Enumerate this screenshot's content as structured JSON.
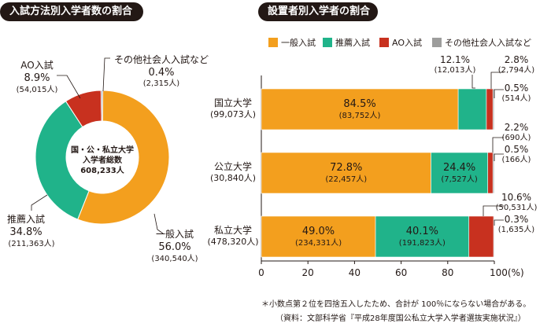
{
  "titles": {
    "left": "入試方法別入学者数の割合",
    "right": "設置者別入学者の割合"
  },
  "colors": {
    "general": "#F39F1E",
    "recommendation": "#20B38A",
    "ao": "#C8311F",
    "other": "#9D9D9C"
  },
  "chart_data": [
    {
      "type": "pie",
      "title": "入試方法別入学者数の割合",
      "center_label": [
        "国・公・私立大学",
        "入学者総数",
        "608,233人"
      ],
      "slices": [
        {
          "name": "一般入試",
          "percent": "56.0%",
          "count": "(340,540人)",
          "value": 56.0
        },
        {
          "name": "推薦入試",
          "percent": "34.8%",
          "count": "(211,363人)",
          "value": 34.8
        },
        {
          "name": "AO入試",
          "percent": "8.9%",
          "count": "(54,015人)",
          "value": 8.9
        },
        {
          "name": "その他社会人入試など",
          "percent": "0.4%",
          "count": "(2,315人)",
          "value": 0.4
        }
      ]
    },
    {
      "type": "bar",
      "orientation": "horizontal",
      "stacked": true,
      "title": "設置者別入学者の割合",
      "legend": [
        "一般入試",
        "推薦入試",
        "AO入試",
        "その他社会人入試など"
      ],
      "xlim": [
        0,
        100
      ],
      "xticks": [
        "0",
        "20",
        "40",
        "60",
        "80",
        "100(%)"
      ],
      "categories": [
        {
          "name": "国立大学",
          "total": "(99,073人)",
          "segments": [
            {
              "value": 84.5,
              "pct": "84.5%",
              "count": "(83,752人)"
            },
            {
              "value": 12.1,
              "pct": "12.1%",
              "count": "(12,013人)"
            },
            {
              "value": 2.8,
              "pct": "2.8%",
              "count": "(2,794人)"
            },
            {
              "value": 0.5,
              "pct": "0.5%",
              "count": "(514人)"
            }
          ]
        },
        {
          "name": "公立大学",
          "total": "(30,840人)",
          "segments": [
            {
              "value": 72.8,
              "pct": "72.8%",
              "count": "(22,457人)"
            },
            {
              "value": 24.4,
              "pct": "24.4%",
              "count": "(7,527人)"
            },
            {
              "value": 2.2,
              "pct": "2.2%",
              "count": "(690人)"
            },
            {
              "value": 0.5,
              "pct": "0.5%",
              "count": "(166人)"
            }
          ]
        },
        {
          "name": "私立大学",
          "total": "(478,320人)",
          "segments": [
            {
              "value": 49.0,
              "pct": "49.0%",
              "count": "(234,331人)"
            },
            {
              "value": 40.1,
              "pct": "40.1%",
              "count": "(191,823人)"
            },
            {
              "value": 10.6,
              "pct": "10.6%",
              "count": "(50,531人)"
            },
            {
              "value": 0.3,
              "pct": "0.3%",
              "count": "(1,635人)"
            }
          ]
        }
      ]
    }
  ],
  "footnotes": {
    "note": "＊小数点第２位を四捨五入したため、合計が 100％にならない場合がある。",
    "source": "（資料：文部科学省『平成28年度国公私立大学入学者選抜実施状況』）"
  }
}
